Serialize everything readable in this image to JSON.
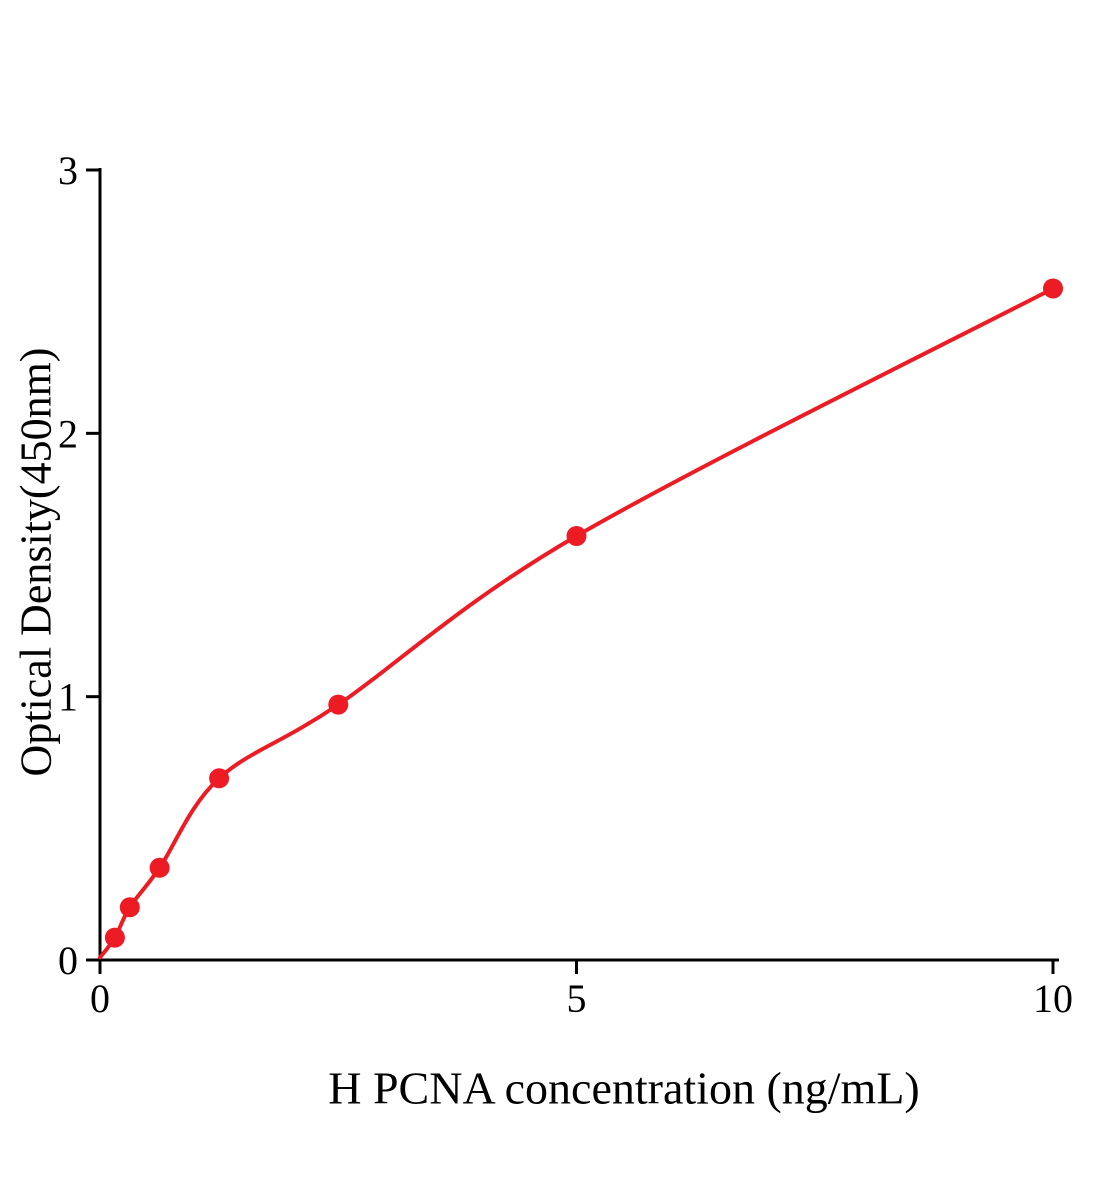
{
  "figure": {
    "background": "#ffffff"
  },
  "chart_data": {
    "type": "scatter",
    "fit_line": true,
    "title": "",
    "xlabel": "H PCNA concentration (ng/mL)",
    "ylabel": "Optical Density(450nm)",
    "x": [
      0.156,
      0.3125,
      0.625,
      1.25,
      2.5,
      5,
      10
    ],
    "y": [
      0.085,
      0.2,
      0.35,
      0.69,
      0.97,
      1.61,
      2.55
    ],
    "curve_start": [
      0,
      0.01
    ],
    "xlim": [
      0,
      10
    ],
    "ylim": [
      0,
      3
    ],
    "xticks": [
      0,
      5,
      10
    ],
    "yticks": [
      0,
      1,
      2,
      3
    ],
    "series_color": "#ed1c24",
    "axis_color": "#000000",
    "grid": false,
    "legend": "none"
  }
}
